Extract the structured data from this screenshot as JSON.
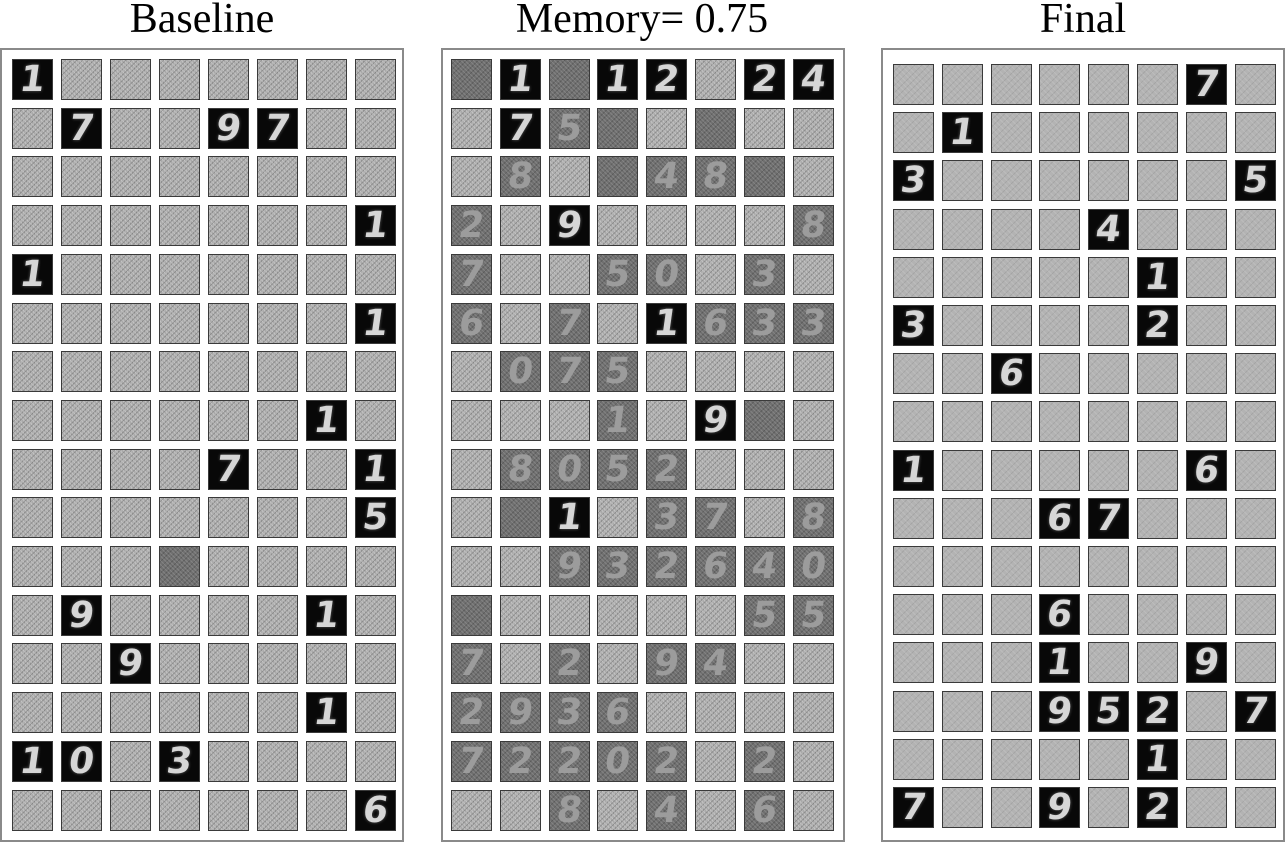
{
  "panels": [
    {
      "id": "baseline",
      "title": "Baseline",
      "grid": [
        [
          "1",
          "",
          "",
          "",
          "",
          "",
          "",
          ""
        ],
        [
          "",
          "7",
          "",
          "",
          "9",
          "7",
          "",
          ""
        ],
        [
          "",
          "",
          "",
          "",
          "",
          "",
          "",
          ""
        ],
        [
          "",
          "",
          "",
          "",
          "",
          "",
          "",
          "1"
        ],
        [
          "1",
          "",
          "",
          "",
          "",
          "",
          "",
          ""
        ],
        [
          "",
          "",
          "",
          "",
          "",
          "",
          "",
          "1"
        ],
        [
          "",
          "",
          "",
          "",
          "",
          "",
          "",
          ""
        ],
        [
          "",
          "",
          "",
          "",
          "",
          "",
          "1",
          ""
        ],
        [
          "",
          "",
          "",
          "",
          "7",
          "",
          "",
          "1"
        ],
        [
          "",
          "",
          "",
          "",
          "",
          "",
          "",
          "5"
        ],
        [
          "",
          "",
          "",
          "~",
          "",
          "",
          "",
          ""
        ],
        [
          "",
          "9",
          "",
          "",
          "",
          "",
          "1",
          ""
        ],
        [
          "",
          "",
          "9",
          "",
          "",
          "",
          "",
          ""
        ],
        [
          "",
          "",
          "",
          "",
          "",
          "",
          "1",
          ""
        ],
        [
          "1",
          "0",
          "",
          "3",
          "",
          "",
          "",
          ""
        ],
        [
          "",
          "",
          "",
          "",
          "",
          "",
          "",
          "6"
        ]
      ]
    },
    {
      "id": "memory",
      "title": "Memory= 0.75",
      "grid": [
        [
          "~",
          "1",
          "~",
          "1",
          "2",
          "",
          "2",
          "4"
        ],
        [
          "",
          "7",
          "~5",
          "~",
          "",
          "~",
          "",
          ""
        ],
        [
          "",
          "~8",
          "",
          "~",
          "~4",
          "~8",
          "~",
          ""
        ],
        [
          "~2",
          "",
          "9",
          "",
          "",
          "",
          "",
          "~8"
        ],
        [
          "~7",
          "",
          "",
          "~5",
          "~0",
          "",
          "~3",
          ""
        ],
        [
          "~6",
          "",
          "~7",
          "",
          "1",
          "~6",
          "~3",
          "~3"
        ],
        [
          "",
          "~0",
          "~7",
          "~5",
          "",
          "",
          "",
          ""
        ],
        [
          "",
          "",
          "",
          "~1",
          "",
          "9",
          "~",
          ""
        ],
        [
          "",
          "~8",
          "~0",
          "~5",
          "~2",
          "",
          "",
          ""
        ],
        [
          "",
          "~",
          "1",
          "",
          "~3",
          "~7",
          "",
          "~8"
        ],
        [
          "",
          "",
          "~9",
          "~3",
          "~2",
          "~6",
          "~4",
          "~0"
        ],
        [
          "~",
          "",
          "",
          "",
          "",
          "",
          "~5",
          "~5"
        ],
        [
          "~7",
          "",
          "~2",
          "",
          "~9",
          "~4",
          "",
          ""
        ],
        [
          "~2",
          "~9",
          "~3",
          "~6",
          "",
          "",
          "",
          ""
        ],
        [
          "~7",
          "~2",
          "~2",
          "~0",
          "~2",
          "",
          "~2",
          ""
        ],
        [
          "",
          "",
          "~8",
          "",
          "~4",
          "",
          "~6",
          ""
        ]
      ]
    },
    {
      "id": "final",
      "title": "Final",
      "grid": [
        [
          "",
          "",
          "",
          "",
          "",
          "",
          "7",
          ""
        ],
        [
          "",
          "1",
          "",
          "",
          "",
          "",
          "",
          ""
        ],
        [
          "3",
          "",
          "",
          "",
          "",
          "",
          "",
          "5"
        ],
        [
          "",
          "",
          "",
          "",
          "4",
          "",
          "",
          ""
        ],
        [
          "",
          "",
          "",
          "",
          "",
          "1",
          "",
          ""
        ],
        [
          "3",
          "",
          "",
          "",
          "",
          "2",
          "",
          ""
        ],
        [
          "",
          "",
          "6",
          "",
          "",
          "",
          "",
          ""
        ],
        [
          "",
          "",
          "",
          "",
          "",
          "",
          "",
          ""
        ],
        [
          "1",
          "",
          "",
          "",
          "",
          "",
          "6",
          ""
        ],
        [
          "",
          "",
          "",
          "6",
          "7",
          "",
          "",
          ""
        ],
        [
          "",
          "",
          "",
          "",
          "",
          "",
          "",
          ""
        ],
        [
          "",
          "",
          "",
          "6",
          "",
          "",
          "",
          ""
        ],
        [
          "",
          "",
          "",
          "1",
          "",
          "",
          "9",
          ""
        ],
        [
          "",
          "",
          "",
          "9",
          "5",
          "2",
          "",
          "7"
        ],
        [
          "",
          "",
          "",
          "",
          "",
          "1",
          "",
          ""
        ],
        [
          "7",
          "",
          "",
          "9",
          "",
          "2",
          "",
          ""
        ]
      ]
    }
  ]
}
